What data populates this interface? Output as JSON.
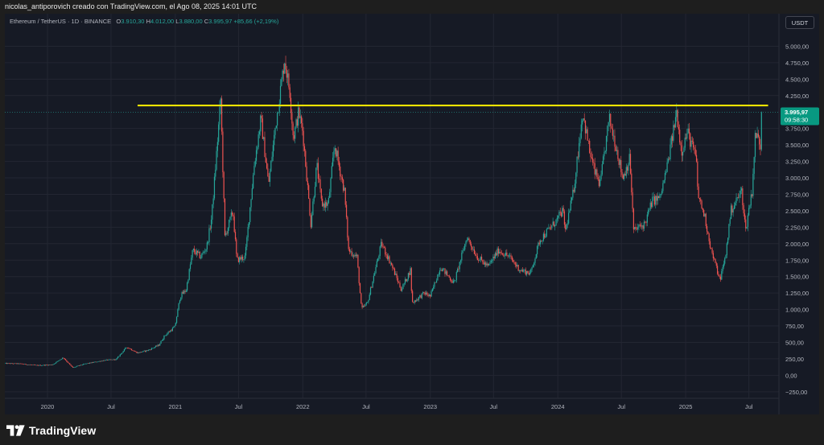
{
  "header": {
    "attribution": "nicolas_antiporovich creado con TradingView.com, el Ago 08, 2025 14:01 UTC"
  },
  "legend": {
    "symbol": "Ethereum / TetherUS · 1D · BINANCE",
    "open_label": "O",
    "open": "3.910,30",
    "high_label": "H",
    "high": "4.012,00",
    "low_label": "L",
    "low": "3.880,00",
    "close_label": "C",
    "close": "3.995,97",
    "change": "+85,66 (+2,19%)"
  },
  "currency_button": "USDT",
  "footer": {
    "brand": "TradingView"
  },
  "colors": {
    "up": "#26a69a",
    "down": "#ef5350",
    "background": "#161a25",
    "grid": "#232632",
    "resistance": "#f5e400",
    "axis_text": "#b2b5be",
    "price_tag": "#089981"
  },
  "chart_data": {
    "type": "candlestick",
    "x_range": [
      "2019-09-01",
      "2025-09-25"
    ],
    "ylim": [
      -350,
      5250
    ],
    "grid": true,
    "x_ticks": [
      {
        "date": "2020-01-01",
        "label": "2020"
      },
      {
        "date": "2020-07-01",
        "label": "Jul"
      },
      {
        "date": "2021-01-01",
        "label": "2021"
      },
      {
        "date": "2021-07-01",
        "label": "Jul"
      },
      {
        "date": "2022-01-01",
        "label": "2022"
      },
      {
        "date": "2022-07-01",
        "label": "Jul"
      },
      {
        "date": "2023-01-01",
        "label": "2023"
      },
      {
        "date": "2023-07-01",
        "label": "Jul"
      },
      {
        "date": "2024-01-01",
        "label": "2024"
      },
      {
        "date": "2024-07-01",
        "label": "Jul"
      },
      {
        "date": "2025-01-01",
        "label": "2025"
      },
      {
        "date": "2025-07-01",
        "label": "Jul"
      }
    ],
    "y_ticks": [
      {
        "value": 5000,
        "label": "5.000,00"
      },
      {
        "value": 4750,
        "label": "4.750,00"
      },
      {
        "value": 4500,
        "label": "4.500,00"
      },
      {
        "value": 4250,
        "label": "4.250,00"
      },
      {
        "value": 3750,
        "label": "3.750,00"
      },
      {
        "value": 3500,
        "label": "3.500,00"
      },
      {
        "value": 3250,
        "label": "3.250,00"
      },
      {
        "value": 3000,
        "label": "3.000,00"
      },
      {
        "value": 2750,
        "label": "2.750,00"
      },
      {
        "value": 2500,
        "label": "2.500,00"
      },
      {
        "value": 2250,
        "label": "2.250,00"
      },
      {
        "value": 2000,
        "label": "2.000,00"
      },
      {
        "value": 1750,
        "label": "1.750,00"
      },
      {
        "value": 1500,
        "label": "1.500,00"
      },
      {
        "value": 1250,
        "label": "1.250,00"
      },
      {
        "value": 1000,
        "label": "1.000,00"
      },
      {
        "value": 750,
        "label": "750,00"
      },
      {
        "value": 500,
        "label": "500,00"
      },
      {
        "value": 250,
        "label": "250,00"
      },
      {
        "value": 0,
        "label": "0,00"
      },
      {
        "value": -250,
        "label": "−250,00"
      }
    ],
    "price_line": {
      "value": 3995.97
    },
    "resistance_line": {
      "value": 4100,
      "from": "2020-09-15",
      "to": "2025-08-25"
    },
    "last_price_tag": {
      "value": 3995.97,
      "price": "3.995,97",
      "countdown": "09:58:30"
    },
    "price_path": [
      [
        "2019-09-01",
        180
      ],
      [
        "2019-10-15",
        175
      ],
      [
        "2019-12-01",
        150
      ],
      [
        "2020-01-15",
        160
      ],
      [
        "2020-02-15",
        270
      ],
      [
        "2020-03-13",
        115
      ],
      [
        "2020-04-15",
        170
      ],
      [
        "2020-05-15",
        200
      ],
      [
        "2020-06-15",
        230
      ],
      [
        "2020-07-15",
        240
      ],
      [
        "2020-08-15",
        430
      ],
      [
        "2020-09-15",
        340
      ],
      [
        "2020-10-15",
        380
      ],
      [
        "2020-11-15",
        460
      ],
      [
        "2020-12-01",
        600
      ],
      [
        "2020-12-31",
        740
      ],
      [
        "2021-01-15",
        1200
      ],
      [
        "2021-02-01",
        1300
      ],
      [
        "2021-02-20",
        1900
      ],
      [
        "2021-03-15",
        1800
      ],
      [
        "2021-04-01",
        1950
      ],
      [
        "2021-04-15",
        2400
      ],
      [
        "2021-05-11",
        4200
      ],
      [
        "2021-05-23",
        2100
      ],
      [
        "2021-06-15",
        2500
      ],
      [
        "2021-06-26",
        1750
      ],
      [
        "2021-07-20",
        1800
      ],
      [
        "2021-08-15",
        3200
      ],
      [
        "2021-09-03",
        3900
      ],
      [
        "2021-09-25",
        2900
      ],
      [
        "2021-10-15",
        3800
      ],
      [
        "2021-11-10",
        4800
      ],
      [
        "2021-11-25",
        4300
      ],
      [
        "2021-12-05",
        3600
      ],
      [
        "2021-12-20",
        4000
      ],
      [
        "2022-01-01",
        3700
      ],
      [
        "2022-01-24",
        2300
      ],
      [
        "2022-02-10",
        3200
      ],
      [
        "2022-02-24",
        2600
      ],
      [
        "2022-03-15",
        2600
      ],
      [
        "2022-04-02",
        3500
      ],
      [
        "2022-04-30",
        2800
      ],
      [
        "2022-05-12",
        1900
      ],
      [
        "2022-06-05",
        1800
      ],
      [
        "2022-06-18",
        1000
      ],
      [
        "2022-07-05",
        1100
      ],
      [
        "2022-08-14",
        2000
      ],
      [
        "2022-09-10",
        1700
      ],
      [
        "2022-10-10",
        1300
      ],
      [
        "2022-11-05",
        1600
      ],
      [
        "2022-11-10",
        1100
      ],
      [
        "2022-12-15",
        1250
      ],
      [
        "2023-01-01",
        1200
      ],
      [
        "2023-01-30",
        1650
      ],
      [
        "2023-03-10",
        1400
      ],
      [
        "2023-04-16",
        2100
      ],
      [
        "2023-05-15",
        1800
      ],
      [
        "2023-06-15",
        1650
      ],
      [
        "2023-07-15",
        1900
      ],
      [
        "2023-08-15",
        1800
      ],
      [
        "2023-09-15",
        1600
      ],
      [
        "2023-10-15",
        1550
      ],
      [
        "2023-11-10",
        2050
      ],
      [
        "2023-12-28",
        2350
      ],
      [
        "2024-01-15",
        2500
      ],
      [
        "2024-01-23",
        2200
      ],
      [
        "2024-02-15",
        2800
      ],
      [
        "2024-03-12",
        4000
      ],
      [
        "2024-04-01",
        3400
      ],
      [
        "2024-04-15",
        3100
      ],
      [
        "2024-05-01",
        2900
      ],
      [
        "2024-05-27",
        3900
      ],
      [
        "2024-06-15",
        3500
      ],
      [
        "2024-07-05",
        3000
      ],
      [
        "2024-07-25",
        3300
      ],
      [
        "2024-08-05",
        2200
      ],
      [
        "2024-09-06",
        2300
      ],
      [
        "2024-09-27",
        2650
      ],
      [
        "2024-10-20",
        2700
      ],
      [
        "2024-11-10",
        3200
      ],
      [
        "2024-12-06",
        4000
      ],
      [
        "2024-12-20",
        3400
      ],
      [
        "2025-01-06",
        3700
      ],
      [
        "2025-01-31",
        3300
      ],
      [
        "2025-02-05",
        2750
      ],
      [
        "2025-02-25",
        2400
      ],
      [
        "2025-03-15",
        1900
      ],
      [
        "2025-04-09",
        1450
      ],
      [
        "2025-04-25",
        1800
      ],
      [
        "2025-05-10",
        2500
      ],
      [
        "2025-06-10",
        2800
      ],
      [
        "2025-06-22",
        2200
      ],
      [
        "2025-06-30",
        2500
      ],
      [
        "2025-07-10",
        2800
      ],
      [
        "2025-07-20",
        3700
      ],
      [
        "2025-08-03",
        3500
      ],
      [
        "2025-08-08",
        3995
      ]
    ]
  }
}
